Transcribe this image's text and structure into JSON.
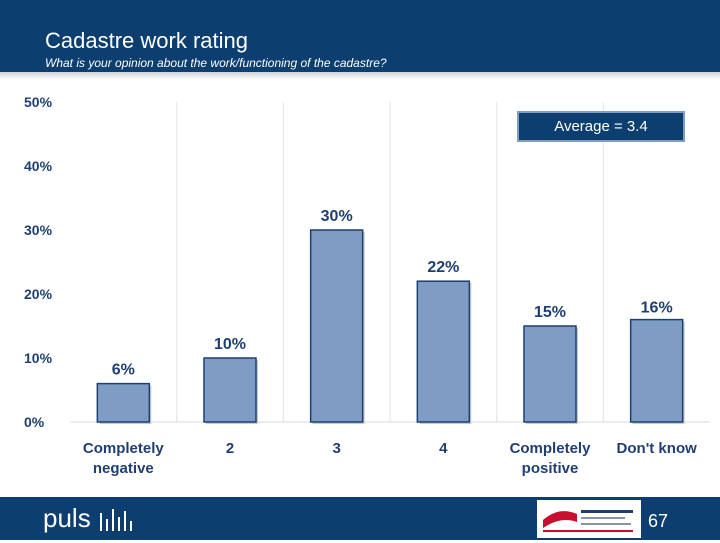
{
  "header": {
    "title": "Cadastre work rating",
    "subtitle": "What is your opinion about the work/functioning of the cadastre?"
  },
  "annotation": {
    "average_label": "Average = 3.4"
  },
  "footer": {
    "brand": "puls",
    "page_number": "67",
    "partner_logo_icon": "ministry-logo-icon"
  },
  "colors": {
    "header_bg": "#0c3f6f",
    "bar_fill": "#7f9cc4",
    "bar_edge": "#1f3f73",
    "label_color": "#1f3f73"
  },
  "chart_data": {
    "type": "bar",
    "categories": [
      "Completely negative",
      "2",
      "3",
      "4",
      "Completely positive",
      "Don't know"
    ],
    "category_labels": [
      [
        "Completely",
        "negative"
      ],
      [
        "2"
      ],
      [
        "3"
      ],
      [
        "4"
      ],
      [
        "Completely",
        "positive"
      ],
      [
        "Don't know"
      ]
    ],
    "values": [
      6,
      10,
      30,
      22,
      15,
      16
    ],
    "value_labels": [
      "6%",
      "10%",
      "30%",
      "22%",
      "15%",
      "16%"
    ],
    "yticks": [
      "0%",
      "10%",
      "20%",
      "30%",
      "40%",
      "50%"
    ],
    "ylim": [
      0,
      50
    ],
    "grid": "vertical separators between categories",
    "legend": "none"
  }
}
